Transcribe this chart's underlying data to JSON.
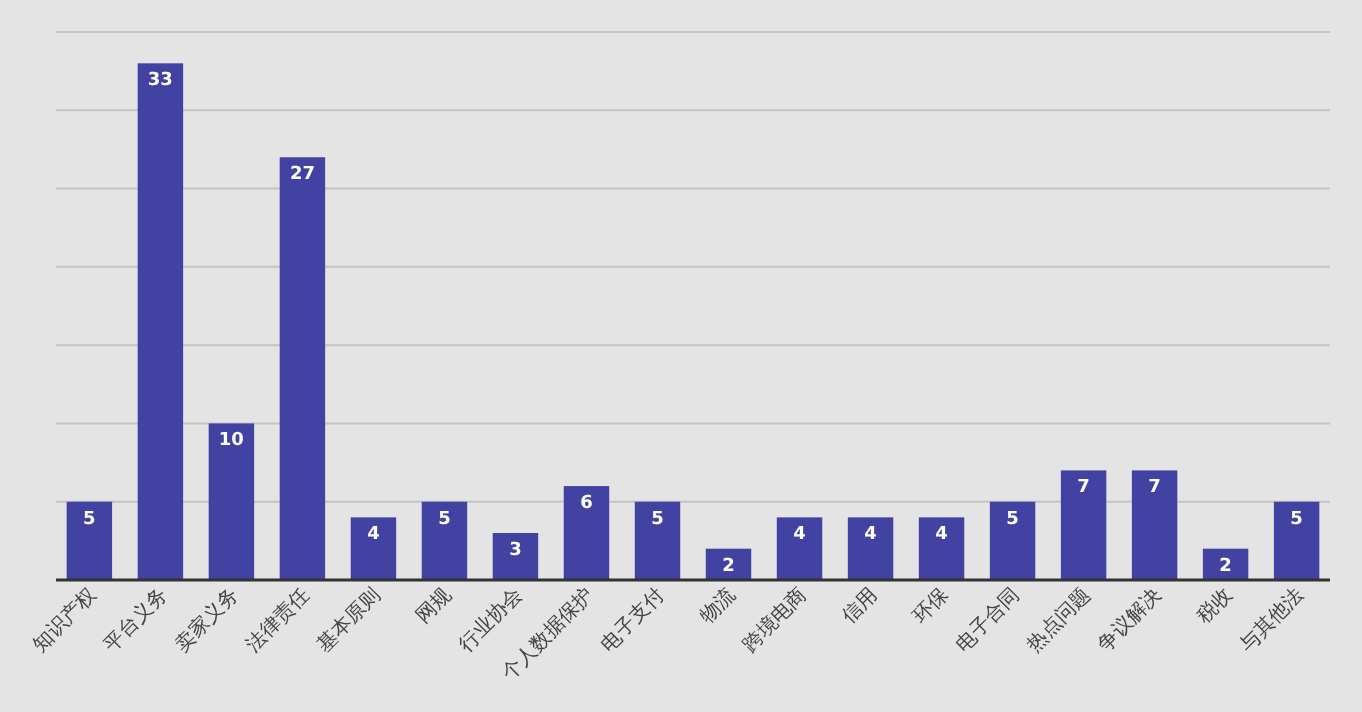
{
  "chart_data": {
    "type": "bar",
    "categories": [
      "知识产权",
      "平台义务",
      "卖家义务",
      "法律责任",
      "基本原则",
      "网规",
      "行业协会",
      "个人数据保护",
      "电子支付",
      "物流",
      "跨境电商",
      "信用",
      "环保",
      "电子合同",
      "热点问题",
      "争议解决",
      "税收",
      "与其他法"
    ],
    "values": [
      5,
      33,
      10,
      27,
      4,
      5,
      3,
      6,
      5,
      2,
      4,
      4,
      4,
      5,
      7,
      7,
      2,
      5
    ],
    "color": "#4242a3",
    "ylim": [
      0,
      35
    ],
    "yticks": [
      {
        "value": 0,
        "label": null
      },
      {
        "value": 5,
        "label": null
      },
      {
        "value": 10,
        "label": null
      },
      {
        "value": 15,
        "label": null
      },
      {
        "value": 20,
        "label": null
      },
      {
        "value": 25,
        "label": null
      },
      {
        "value": 30,
        "label": null
      },
      {
        "value": 35,
        "label": null
      }
    ],
    "tick_labels": "x",
    "grid": "y",
    "data_labels": true
  }
}
